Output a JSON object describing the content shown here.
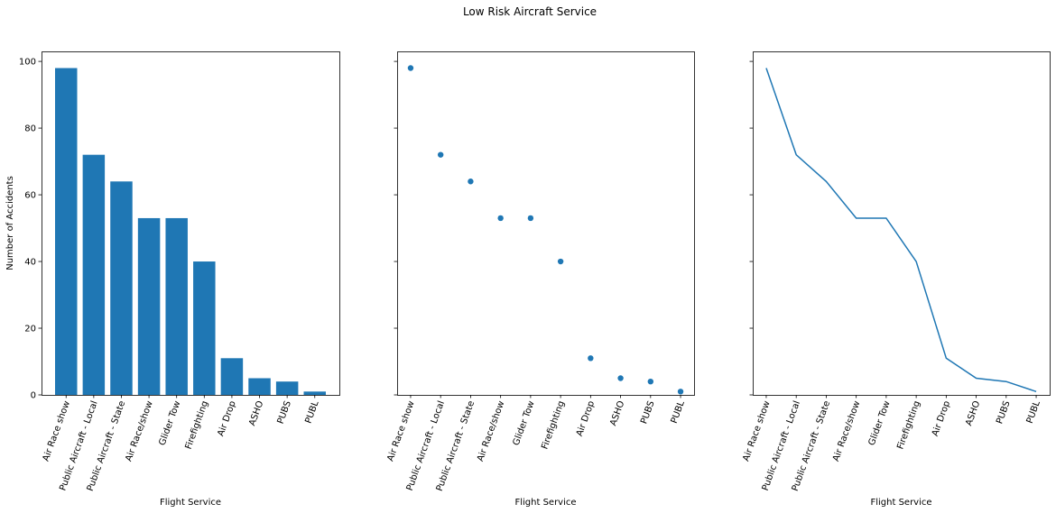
{
  "figure": {
    "title": "Low Risk Aircraft Service"
  },
  "chart_data": [
    {
      "type": "bar",
      "categories": [
        "Air Race show",
        "Public Aircraft - Local",
        "Public Aircraft - State",
        "Air Race/show",
        "Glider Tow",
        "Firefighting",
        "Air Drop",
        "ASHO",
        "PUBS",
        "PUBL"
      ],
      "values": [
        98,
        72,
        64,
        53,
        53,
        40,
        11,
        5,
        4,
        1
      ],
      "xlabel": "Flight Service",
      "ylabel": "Number of Accidents",
      "ylim": [
        0,
        103
      ],
      "yticks": [
        0,
        20,
        40,
        60,
        80,
        100
      ],
      "color": "#1f77b4",
      "grid": false
    },
    {
      "type": "scatter",
      "categories": [
        "Air Race show",
        "Public Aircraft - Local",
        "Public Aircraft - State",
        "Air Race/show",
        "Glider Tow",
        "Firefighting",
        "Air Drop",
        "ASHO",
        "PUBS",
        "PUBL"
      ],
      "values": [
        98,
        72,
        64,
        53,
        53,
        40,
        11,
        5,
        4,
        1
      ],
      "xlabel": "Flight Service",
      "ylabel": "",
      "ylim": [
        0,
        103
      ],
      "color": "#1f77b4",
      "grid": false
    },
    {
      "type": "line",
      "categories": [
        "Air Race show",
        "Public Aircraft - Local",
        "Public Aircraft - State",
        "Air Race/show",
        "Glider Tow",
        "Firefighting",
        "Air Drop",
        "ASHO",
        "PUBS",
        "PUBL"
      ],
      "values": [
        98,
        72,
        64,
        53,
        53,
        40,
        11,
        5,
        4,
        1
      ],
      "xlabel": "Flight Service",
      "ylabel": "",
      "ylim": [
        0,
        103
      ],
      "color": "#1f77b4",
      "grid": false
    }
  ]
}
